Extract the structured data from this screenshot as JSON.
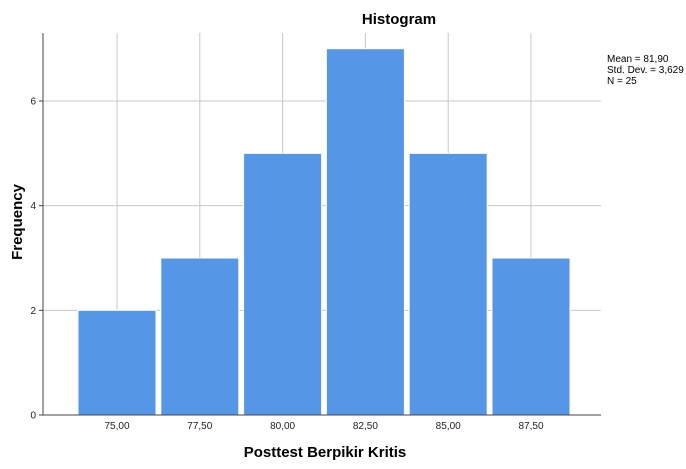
{
  "chart_data": {
    "type": "bar",
    "title": "Histogram",
    "xlabel": "Posttest Berpikir Kritis",
    "ylabel": "Frequency",
    "categories": [
      "75,00",
      "77,50",
      "80,00",
      "82,50",
      "85,00",
      "87,50"
    ],
    "values": [
      2,
      3,
      5,
      7,
      5,
      3
    ],
    "ylim": [
      0,
      7.3
    ],
    "yticks": [
      0,
      2,
      4,
      6
    ],
    "ytick_labels": [
      "0",
      "2",
      "4",
      "6"
    ],
    "grid": true,
    "bar_color": "#5596e6",
    "stats": {
      "mean": "Mean = 81,90",
      "std": "Std. Dev. = 3,629",
      "n": "N = 25"
    }
  }
}
